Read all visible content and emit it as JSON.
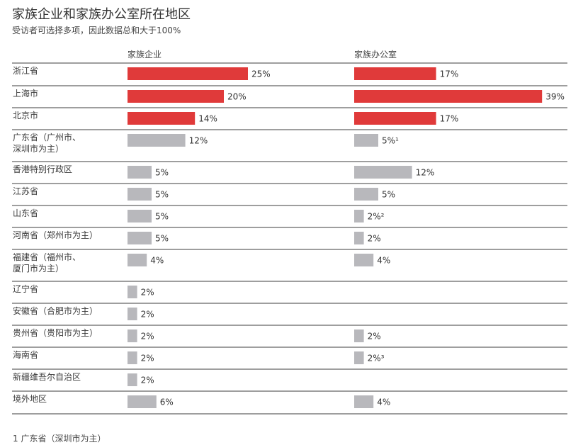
{
  "title": "家族企业和家族办公室所在地区",
  "subtitle": "受访者可选择多项，因此数据总和大于100%",
  "footnote": "1 广东省（深圳市为主）",
  "colors": {
    "highlight": "#e03a3a",
    "default": "#b8b8bc",
    "rule": "#3c3c3c"
  },
  "chart_data": {
    "type": "bar",
    "orientation": "horizontal",
    "categories": [
      [
        "浙江省"
      ],
      [
        "上海市"
      ],
      [
        "北京市"
      ],
      [
        "广东省（广州市、",
        "深圳市为主）"
      ],
      [
        "香港特别行政区"
      ],
      [
        "江苏省"
      ],
      [
        "山东省"
      ],
      [
        "河南省（郑州市为主）"
      ],
      [
        "福建省（福州市、",
        "厦门市为主）"
      ],
      [
        "辽宁省"
      ],
      [
        "安徽省（合肥市为主）"
      ],
      [
        "贵州省（贵阳市为主）"
      ],
      [
        "海南省"
      ],
      [
        "新疆维吾尔自治区"
      ],
      [
        "境外地区"
      ]
    ],
    "highlighted_rows": 3,
    "series": [
      {
        "name": "家族企业",
        "values": [
          25,
          20,
          14,
          12,
          5,
          5,
          5,
          5,
          4,
          2,
          2,
          2,
          2,
          2,
          6
        ],
        "labels": [
          "25%",
          "20%",
          "14%",
          "12%",
          "5%",
          "5%",
          "5%",
          "5%",
          "4%",
          "2%",
          "2%",
          "2%",
          "2%",
          "2%",
          "6%"
        ]
      },
      {
        "name": "家族办公室",
        "values": [
          17,
          39,
          17,
          5,
          12,
          5,
          2,
          2,
          4,
          null,
          null,
          2,
          2,
          null,
          4
        ],
        "labels": [
          "17%",
          "39%",
          "17%",
          "5%¹",
          "12%",
          "5%",
          "2%²",
          "2%",
          "4%",
          null,
          null,
          "2%",
          "2%³",
          null,
          "4%"
        ]
      }
    ]
  }
}
